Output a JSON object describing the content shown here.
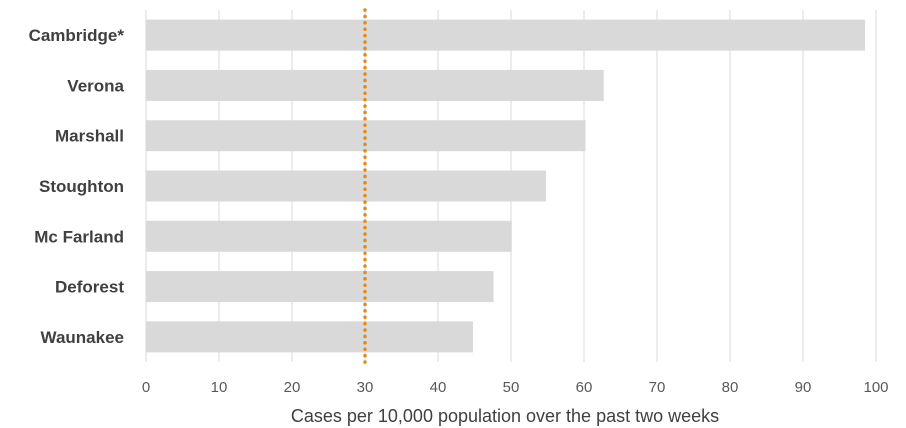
{
  "chart_data": {
    "type": "bar",
    "orientation": "horizontal",
    "categories": [
      "Cambridge*",
      "Verona",
      "Marshall",
      "Stoughton",
      "Mc Farland",
      "Deforest",
      "Waunakee"
    ],
    "values": [
      98.5,
      62.7,
      60.2,
      54.8,
      50.1,
      47.6,
      44.8
    ],
    "xlabel": "Cases per 10,000 population over the past two weeks",
    "xlim": [
      0,
      100
    ],
    "xticks": [
      0,
      10,
      20,
      30,
      40,
      50,
      60,
      70,
      80,
      90,
      100
    ],
    "grid": true,
    "reference_line": {
      "value": 30,
      "style": "dotted"
    },
    "colors": {
      "bar": "#d9d9d9",
      "reference_line": "#e08a1e",
      "grid": "#d9d9d9"
    }
  }
}
